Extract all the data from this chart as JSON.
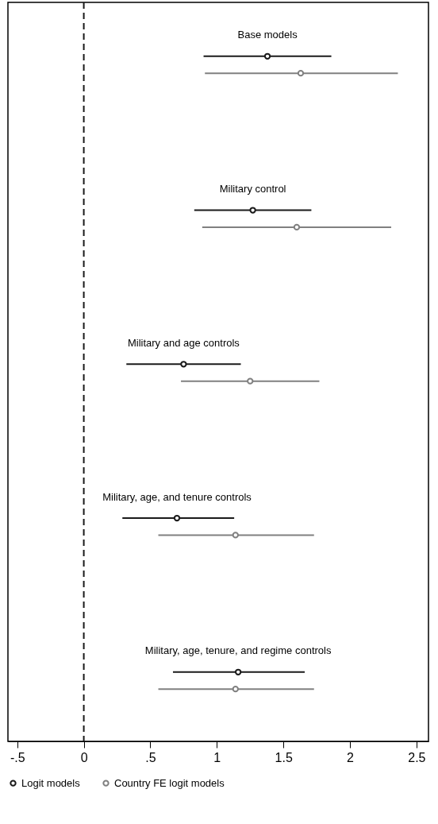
{
  "chart_data": {
    "type": "scatter",
    "orientation": "horizontal",
    "categories": [
      "Base models",
      "Military control",
      "Military and age controls",
      "Military, age, and tenure controls",
      "Military, age, tenure, and regime controls"
    ],
    "series": [
      {
        "name": "Logit models",
        "color": "#1a1a1a",
        "values": [
          1.38,
          1.27,
          0.75,
          0.7,
          1.16
        ],
        "errors": [
          [
            0.9,
            1.86
          ],
          [
            0.83,
            1.71
          ],
          [
            0.32,
            1.18
          ],
          [
            0.29,
            1.13
          ],
          [
            0.67,
            1.66
          ]
        ]
      },
      {
        "name": "Country FE logit models",
        "color": "#808080",
        "values": [
          1.63,
          1.6,
          1.25,
          1.14,
          1.14
        ],
        "errors": [
          [
            0.91,
            2.36
          ],
          [
            0.89,
            2.31
          ],
          [
            0.73,
            1.77
          ],
          [
            0.56,
            1.73
          ],
          [
            0.56,
            1.73
          ]
        ]
      }
    ],
    "xlim": [
      -0.57,
      2.59
    ],
    "xticks": [
      {
        "value": -0.5,
        "label": "-.5"
      },
      0,
      {
        "value": 0.5,
        "label": ".5"
      },
      1,
      1.5,
      2,
      2.5
    ],
    "ref_lines": [
      {
        "axis": "x",
        "value": 0,
        "color": "#1a1a1a",
        "line_style": "dashed"
      }
    ],
    "marker": "circle",
    "grid": false,
    "legend": "bottom"
  }
}
